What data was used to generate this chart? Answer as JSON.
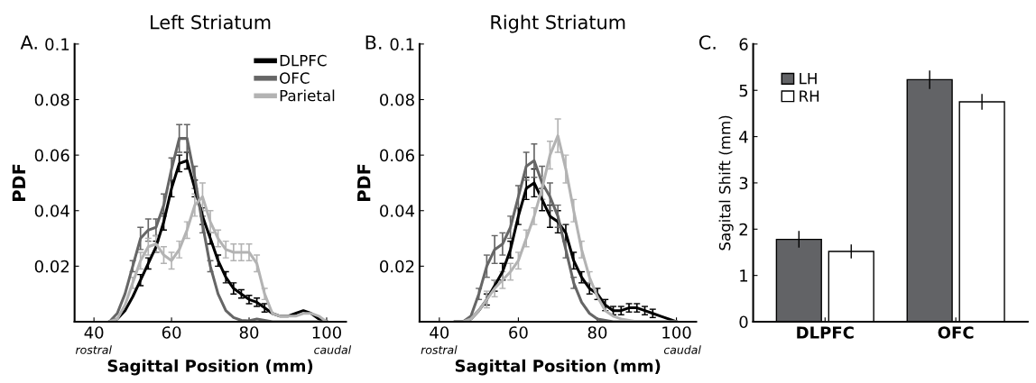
{
  "chart_data": [
    {
      "type": "line",
      "title": "Left Striatum",
      "xlabel": "Sagittal Position (mm)",
      "ylabel": "PDF",
      "annotations": [
        "A.",
        "rostral",
        "caudal"
      ],
      "x": [
        44,
        46,
        48,
        50,
        52,
        54,
        56,
        58,
        60,
        62,
        64,
        66,
        68,
        70,
        72,
        74,
        76,
        78,
        80,
        82,
        84,
        86,
        88,
        90,
        92,
        94,
        96,
        98,
        100
      ],
      "series": [
        {
          "name": "DLPFC",
          "color": "#000000",
          "values": [
            0,
            0.001,
            0.004,
            0.009,
            0.015,
            0.021,
            0.027,
            0.036,
            0.048,
            0.057,
            0.058,
            0.048,
            0.038,
            0.03,
            0.022,
            0.016,
            0.012,
            0.01,
            0.008,
            0.007,
            0.005,
            0.003,
            0.002,
            0.002,
            0.003,
            0.004,
            0.003,
            0.001,
            0
          ],
          "errors": [
            null,
            null,
            null,
            null,
            0.002,
            0.002,
            0.002,
            0.003,
            0.003,
            0.003,
            0.003,
            0.003,
            0.003,
            0.002,
            0.002,
            0.002,
            0.002,
            0.0015,
            0.0015,
            0.0015,
            0.0015,
            null,
            null,
            null,
            null,
            null,
            null,
            null,
            null
          ]
        },
        {
          "name": "OFC",
          "color": "#666666",
          "values": [
            0,
            0.003,
            0.01,
            0.02,
            0.03,
            0.033,
            0.034,
            0.042,
            0.055,
            0.066,
            0.066,
            0.052,
            0.035,
            0.02,
            0.01,
            0.004,
            0.0015,
            0.0005,
            0.0003,
            0.001,
            0.0005,
            0,
            0,
            0,
            0,
            0,
            0,
            0,
            0
          ],
          "errors": [
            null,
            null,
            null,
            0.002,
            0.004,
            0.004,
            0.003,
            0.004,
            0.004,
            0.005,
            0.005,
            0.004,
            0.003,
            0.002,
            null,
            null,
            null,
            null,
            null,
            null,
            null,
            null,
            null,
            null,
            null,
            null,
            null,
            null,
            null
          ]
        },
        {
          "name": "Parietal",
          "color": "#b3b3b3",
          "values": [
            0,
            0.001,
            0.006,
            0.014,
            0.022,
            0.027,
            0.028,
            0.024,
            0.022,
            0.026,
            0.033,
            0.042,
            0.045,
            0.036,
            0.03,
            0.026,
            0.025,
            0.025,
            0.025,
            0.021,
            0.01,
            0.003,
            0.002,
            0.002,
            0.002,
            0.003,
            0.003,
            0.002,
            0
          ],
          "errors": [
            null,
            null,
            null,
            0.002,
            0.003,
            0.003,
            0.003,
            0.003,
            0.003,
            0.003,
            0.003,
            0.004,
            0.005,
            0.004,
            0.003,
            0.003,
            0.003,
            0.003,
            0.003,
            0.003,
            0.002,
            null,
            null,
            null,
            null,
            null,
            null,
            null,
            null
          ]
        }
      ],
      "xlim": [
        35,
        105
      ],
      "xticks": [
        40,
        60,
        80,
        100
      ],
      "ylim": [
        0,
        0.1
      ],
      "yticks": [
        0.02,
        0.04,
        0.06,
        0.08,
        0.1
      ],
      "legend": "top right",
      "grid": false
    },
    {
      "type": "line",
      "title": "Right Striatum",
      "xlabel": "Sagittal Position (mm)",
      "ylabel": "PDF",
      "annotations": [
        "B.",
        "rostral",
        "caudal"
      ],
      "x": [
        44,
        46,
        48,
        50,
        52,
        54,
        56,
        58,
        60,
        62,
        64,
        66,
        68,
        70,
        72,
        74,
        76,
        78,
        80,
        82,
        84,
        86,
        88,
        90,
        92,
        94,
        96,
        98,
        100
      ],
      "series": [
        {
          "color": "#000000",
          "values": [
            0,
            0,
            0.001,
            0.004,
            0.008,
            0.013,
            0.018,
            0.026,
            0.038,
            0.048,
            0.05,
            0.044,
            0.038,
            0.036,
            0.032,
            0.022,
            0.016,
            0.012,
            0.01,
            0.006,
            0.004,
            0.004,
            0.005,
            0.005,
            0.004,
            0.003,
            0.002,
            0.001,
            0
          ],
          "errors": [
            null,
            null,
            null,
            null,
            0.002,
            0.002,
            0.003,
            0.003,
            0.003,
            0.004,
            0.005,
            0.004,
            0.004,
            0.004,
            0.003,
            0.003,
            0.002,
            0.002,
            0.002,
            0.002,
            0.0015,
            0.0015,
            0.0015,
            0.0015,
            0.0015,
            0.0015,
            null,
            null,
            null
          ]
        },
        {
          "color": "#666666",
          "values": [
            0,
            0,
            0.002,
            0.01,
            0.02,
            0.026,
            0.028,
            0.034,
            0.045,
            0.056,
            0.058,
            0.05,
            0.045,
            0.038,
            0.026,
            0.014,
            0.007,
            0.003,
            0.001,
            0.0005,
            0,
            0,
            0,
            0,
            0,
            0,
            0,
            0,
            0
          ],
          "errors": [
            null,
            null,
            null,
            0.002,
            0.004,
            0.005,
            0.004,
            0.004,
            0.004,
            0.005,
            0.006,
            0.006,
            0.005,
            0.004,
            0.003,
            0.002,
            null,
            null,
            null,
            null,
            null,
            null,
            null,
            null,
            null,
            null,
            null,
            null,
            null
          ]
        },
        {
          "color": "#b3b3b3",
          "values": [
            0,
            0,
            0.001,
            0.004,
            0.008,
            0.012,
            0.015,
            0.018,
            0.022,
            0.03,
            0.038,
            0.048,
            0.06,
            0.067,
            0.055,
            0.04,
            0.026,
            0.016,
            0.009,
            0.004,
            0.002,
            0.001,
            0.0005,
            0,
            0,
            0,
            0,
            0,
            0
          ],
          "errors": [
            null,
            null,
            null,
            null,
            0.003,
            0.003,
            0.003,
            0.003,
            0.003,
            0.003,
            0.003,
            0.004,
            0.005,
            0.006,
            0.005,
            0.004,
            0.003,
            0.002,
            null,
            null,
            null,
            null,
            null,
            null,
            null,
            null,
            null,
            null,
            null
          ]
        }
      ],
      "xlim": [
        35,
        105
      ],
      "xticks": [
        40,
        60,
        80,
        100
      ],
      "ylim": [
        0,
        0.1
      ],
      "yticks": [
        0.02,
        0.04,
        0.06,
        0.08,
        0.1
      ],
      "grid": false
    },
    {
      "type": "bar",
      "ylabel": "Sagital Shift (mm)",
      "annotations": [
        "C."
      ],
      "categories": [
        "DLPFC",
        "OFC"
      ],
      "series": [
        {
          "name": "LH",
          "color": "#626366",
          "values": [
            1.78,
            5.23
          ],
          "errors": [
            0.18,
            0.2
          ]
        },
        {
          "name": "RH",
          "color": "#ffffff",
          "values": [
            1.52,
            4.75
          ],
          "errors": [
            0.15,
            0.17
          ]
        }
      ],
      "ylim": [
        0,
        6
      ],
      "yticks": [
        0,
        1,
        2,
        3,
        4,
        5,
        6
      ],
      "legend": "top left",
      "grid": false
    }
  ]
}
